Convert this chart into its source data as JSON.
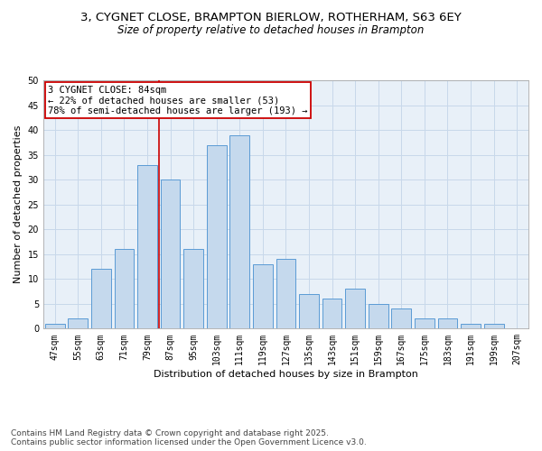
{
  "title_line1": "3, CYGNET CLOSE, BRAMPTON BIERLOW, ROTHERHAM, S63 6EY",
  "title_line2": "Size of property relative to detached houses in Brampton",
  "xlabel": "Distribution of detached houses by size in Brampton",
  "ylabel": "Number of detached properties",
  "categories": [
    "47sqm",
    "55sqm",
    "63sqm",
    "71sqm",
    "79sqm",
    "87sqm",
    "95sqm",
    "103sqm",
    "111sqm",
    "119sqm",
    "127sqm",
    "135sqm",
    "143sqm",
    "151sqm",
    "159sqm",
    "167sqm",
    "175sqm",
    "183sqm",
    "191sqm",
    "199sqm",
    "207sqm"
  ],
  "values": [
    1,
    2,
    12,
    16,
    33,
    30,
    16,
    37,
    39,
    13,
    14,
    7,
    6,
    8,
    5,
    4,
    2,
    2,
    1,
    1,
    0
  ],
  "bar_color": "#c5d9ed",
  "bar_edge_color": "#5b9bd5",
  "grid_color": "#c8d8ea",
  "bg_color": "#e8f0f8",
  "vline_x": 4.5,
  "vline_color": "#cc0000",
  "annotation_text": "3 CYGNET CLOSE: 84sqm\n← 22% of detached houses are smaller (53)\n78% of semi-detached houses are larger (193) →",
  "annotation_box_color": "#ffffff",
  "annotation_box_edge": "#cc0000",
  "ylim": [
    0,
    50
  ],
  "yticks": [
    0,
    5,
    10,
    15,
    20,
    25,
    30,
    35,
    40,
    45,
    50
  ],
  "footnote": "Contains HM Land Registry data © Crown copyright and database right 2025.\nContains public sector information licensed under the Open Government Licence v3.0.",
  "title_fontsize": 9.5,
  "subtitle_fontsize": 8.5,
  "axis_label_fontsize": 8,
  "tick_fontsize": 7,
  "annotation_fontsize": 7.5,
  "footnote_fontsize": 6.5
}
